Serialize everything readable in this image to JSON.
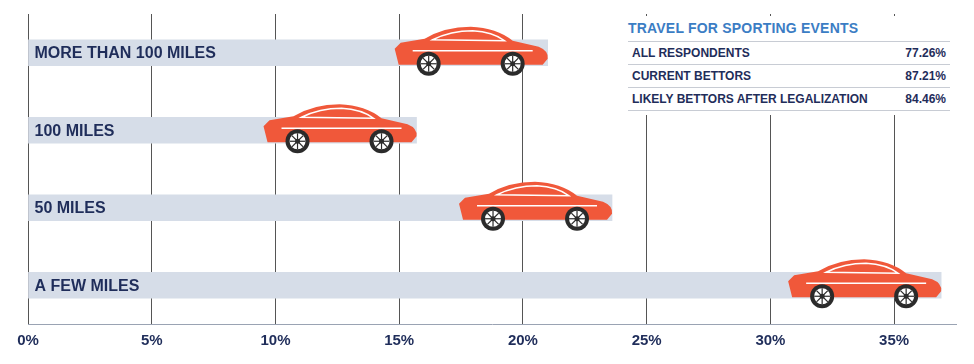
{
  "chart_data": {
    "type": "bar",
    "orientation": "horizontal",
    "categories": [
      "MORE THAN 100 MILES",
      "100 MILES",
      "50 MILES",
      "A FEW MILES"
    ],
    "values": [
      21,
      15.7,
      23.6,
      36.9
    ],
    "color": "#d6dde8",
    "xlim": [
      0,
      37.5
    ],
    "xticks": [
      {
        "value": 0,
        "label": "0%"
      },
      {
        "value": 5,
        "label": "5%"
      },
      {
        "value": 10,
        "label": "10%"
      },
      {
        "value": 15,
        "label": "15%"
      },
      {
        "value": 20,
        "label": "20%"
      },
      {
        "value": 25,
        "label": "25%"
      },
      {
        "value": 30,
        "label": "30%"
      },
      {
        "value": 35,
        "label": "35%"
      }
    ],
    "grid": true,
    "table": {
      "title": "TRAVEL FOR SPORTING EVENTS",
      "rows": [
        [
          "ALL RESPONDENTS",
          "77.26%"
        ],
        [
          "CURRENT BETTORS",
          "87.21%"
        ],
        [
          "LIKELY BETTORS AFTER LEGALIZATION",
          "84.46%"
        ]
      ]
    }
  }
}
